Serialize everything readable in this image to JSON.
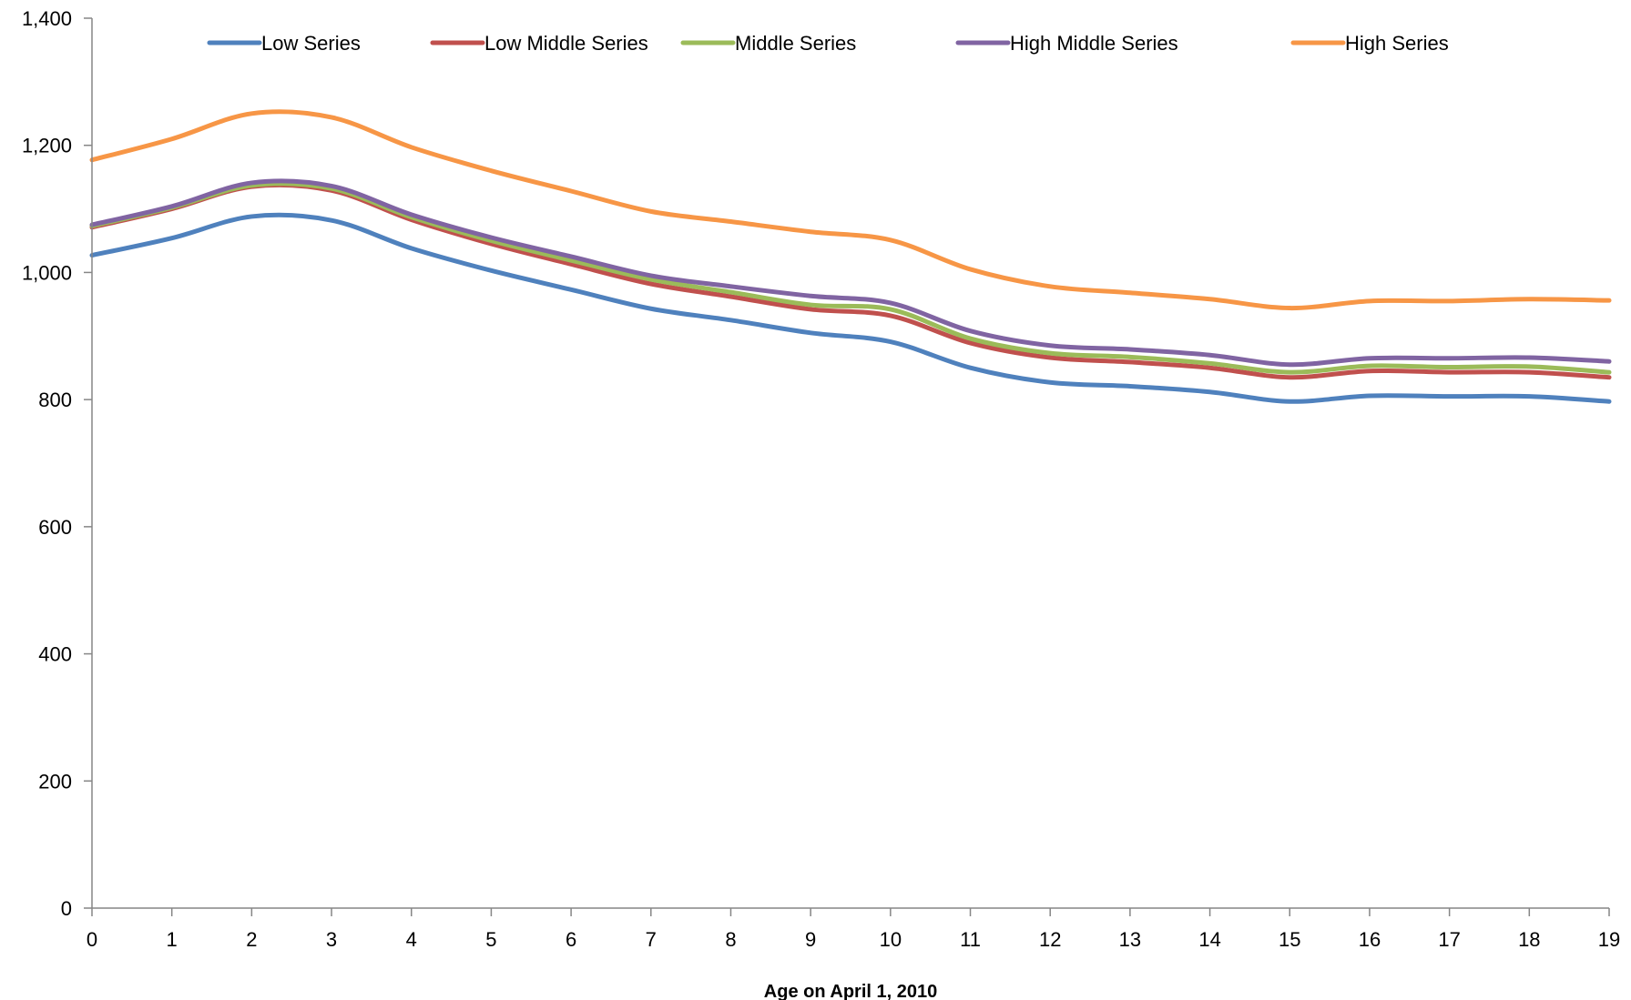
{
  "chart_data": {
    "type": "line",
    "title": "",
    "xlabel": "Age on April 1, 2010",
    "ylabel": "",
    "x": [
      0,
      1,
      2,
      3,
      4,
      5,
      6,
      7,
      8,
      9,
      10,
      11,
      12,
      13,
      14,
      15,
      16,
      17,
      18,
      19
    ],
    "x_tick_labels": [
      "0",
      "1",
      "2",
      "3",
      "4",
      "5",
      "6",
      "7",
      "8",
      "9",
      "10",
      "11",
      "12",
      "13",
      "14",
      "15",
      "16",
      "17",
      "18",
      "19"
    ],
    "y_tick_values": [
      0,
      200,
      400,
      600,
      800,
      1000,
      1200,
      1400
    ],
    "y_tick_labels": [
      "0",
      "200",
      "400",
      "600",
      "800",
      "1,000",
      "1,200",
      "1,400"
    ],
    "xlim": [
      0,
      19
    ],
    "ylim": [
      0,
      1400
    ],
    "grid": false,
    "legend_position": "top",
    "series": [
      {
        "name": "Low Series",
        "color": "#4F81BD",
        "values": [
          1027,
          1054,
          1088,
          1082,
          1038,
          1003,
          973,
          943,
          925,
          905,
          891,
          850,
          827,
          821,
          812,
          797,
          806,
          805,
          805,
          797
        ]
      },
      {
        "name": "Low Middle Series",
        "color": "#C0504D",
        "values": [
          1071,
          1100,
          1135,
          1129,
          1083,
          1045,
          1013,
          982,
          962,
          942,
          932,
          889,
          866,
          859,
          850,
          835,
          845,
          843,
          843,
          835
        ]
      },
      {
        "name": "Middle Series",
        "color": "#9BBB59",
        "values": [
          1073,
          1102,
          1137,
          1132,
          1087,
          1050,
          1019,
          989,
          969,
          949,
          942,
          896,
          873,
          867,
          857,
          843,
          853,
          851,
          852,
          843
        ]
      },
      {
        "name": "High Middle Series",
        "color": "#8064A2",
        "values": [
          1075,
          1104,
          1141,
          1136,
          1091,
          1055,
          1025,
          995,
          978,
          963,
          952,
          908,
          885,
          879,
          870,
          855,
          865,
          865,
          866,
          860
        ]
      },
      {
        "name": "High Series",
        "color": "#F79646",
        "values": [
          1177,
          1210,
          1250,
          1244,
          1197,
          1160,
          1128,
          1096,
          1080,
          1064,
          1051,
          1005,
          978,
          968,
          958,
          944,
          955,
          955,
          958,
          956
        ]
      }
    ]
  }
}
